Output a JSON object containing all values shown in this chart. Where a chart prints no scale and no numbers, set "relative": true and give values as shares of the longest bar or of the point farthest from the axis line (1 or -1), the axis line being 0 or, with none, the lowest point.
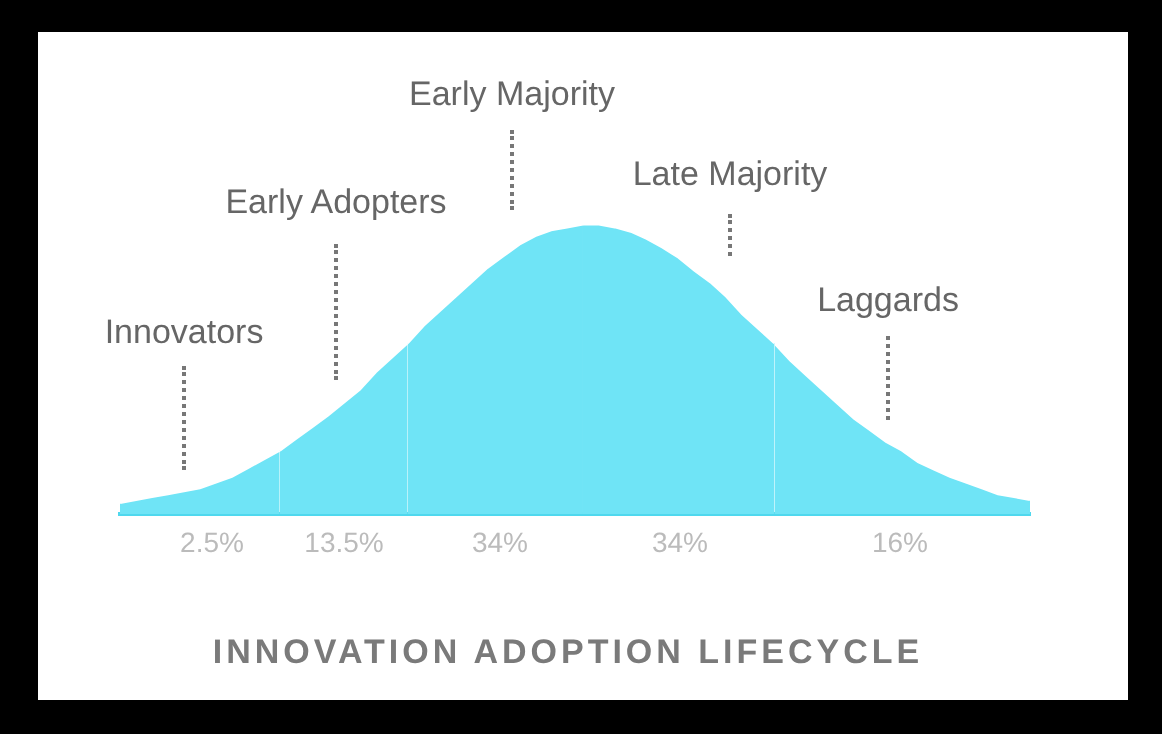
{
  "chart_data": {
    "type": "area",
    "title": "INNOVATION ADOPTION LIFECYCLE",
    "relative": true,
    "categories": [
      null,
      null,
      null,
      null,
      null,
      null,
      null,
      null,
      null,
      null,
      null,
      null,
      null,
      null,
      null,
      null,
      null,
      null,
      null,
      null,
      null,
      null,
      null,
      null,
      null,
      null,
      null,
      null,
      null,
      null,
      null,
      null,
      null,
      null,
      null,
      null,
      null,
      null,
      null,
      null,
      null,
      null,
      null,
      null,
      null,
      null,
      null,
      null,
      null,
      null,
      null,
      null,
      null,
      null,
      null,
      null,
      null,
      null
    ],
    "series": [
      {
        "color": "#6fe4f6",
        "values": [
          0.04,
          0.05,
          0.06,
          0.07,
          0.08,
          0.09,
          0.11,
          0.13,
          0.16,
          0.19,
          0.22,
          null,
          null,
          null,
          null,
          null,
          null,
          null,
          null,
          null,
          null,
          null,
          null,
          null,
          null,
          null,
          null,
          null,
          null,
          null,
          null,
          null,
          null,
          null,
          null,
          null,
          null,
          null,
          null,
          null,
          null,
          null,
          null,
          null,
          null,
          null,
          null,
          null,
          null,
          null,
          null,
          null,
          null,
          null,
          null,
          null,
          null,
          null
        ]
      },
      {
        "color": "#6fe4f6",
        "values": [
          null,
          null,
          null,
          null,
          null,
          null,
          null,
          null,
          null,
          null,
          0.22,
          0.26,
          0.3,
          0.34,
          0.385,
          0.43,
          0.49,
          0.54,
          0.59,
          null,
          null,
          null,
          null,
          null,
          null,
          null,
          null,
          null,
          null,
          null,
          null,
          null,
          null,
          null,
          null,
          null,
          null,
          null,
          null,
          null,
          null,
          null,
          null,
          null,
          null,
          null,
          null,
          null,
          null,
          null,
          null,
          null,
          null,
          null,
          null,
          null,
          null,
          null
        ]
      },
      {
        "color": "#6fe4f6",
        "values": [
          null,
          null,
          null,
          null,
          null,
          null,
          null,
          null,
          null,
          null,
          null,
          null,
          null,
          null,
          null,
          null,
          null,
          null,
          0.59,
          0.65,
          0.7,
          0.75,
          0.8,
          0.85,
          0.89,
          0.93,
          0.96,
          0.98,
          0.99,
          1,
          null,
          null,
          null,
          null,
          null,
          null,
          null,
          null,
          null,
          null,
          null,
          null,
          null,
          null,
          null,
          null,
          null,
          null,
          null,
          null,
          null,
          null,
          null,
          null,
          null,
          null,
          null,
          null
        ]
      },
      {
        "color": "#6fe4f6",
        "values": [
          null,
          null,
          null,
          null,
          null,
          null,
          null,
          null,
          null,
          null,
          null,
          null,
          null,
          null,
          null,
          null,
          null,
          null,
          null,
          null,
          null,
          null,
          null,
          null,
          null,
          null,
          null,
          null,
          null,
          1,
          1,
          0.99,
          0.975,
          0.95,
          0.92,
          0.885,
          0.84,
          0.8,
          0.75,
          0.69,
          0.64,
          0.59,
          null,
          null,
          null,
          null,
          null,
          null,
          null,
          null,
          null,
          null,
          null,
          null,
          null,
          null,
          null,
          null
        ]
      },
      {
        "color": "#6fe4f6",
        "values": [
          null,
          null,
          null,
          null,
          null,
          null,
          null,
          null,
          null,
          null,
          null,
          null,
          null,
          null,
          null,
          null,
          null,
          null,
          null,
          null,
          null,
          null,
          null,
          null,
          null,
          null,
          null,
          null,
          null,
          null,
          null,
          null,
          null,
          null,
          null,
          null,
          null,
          null,
          null,
          null,
          null,
          0.59,
          0.53,
          0.48,
          0.43,
          0.38,
          0.33,
          0.29,
          0.25,
          0.22,
          0.18,
          0.155,
          0.13,
          0.11,
          0.09,
          0.07,
          0.06,
          0.05
        ]
      }
    ],
    "annotations": [
      "Innovators",
      "Early Adopters",
      "Early Majority",
      "Late Majority",
      "Laggards",
      "2.5%",
      "13.5%",
      "34%",
      "34%",
      "16%"
    ]
  }
}
